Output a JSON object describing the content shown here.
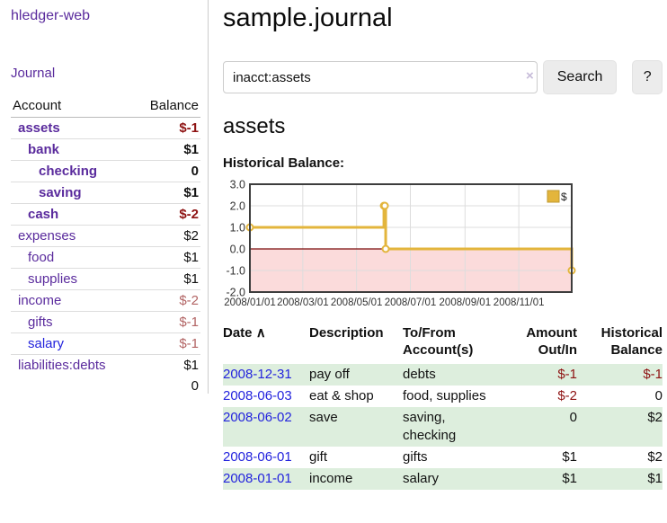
{
  "app": {
    "brand": "hledger-web"
  },
  "colors": {
    "link_purple": "#5a2b9d",
    "link_blue": "#2323dd",
    "negative_strong": "#8e1212",
    "negative_muted": "#b26464",
    "row_stripe_green": "#ddeedd",
    "chart_gold": "#e3b53c",
    "chart_negative_fill": "#fbdbdb",
    "chart_zero_line": "#7a0a0a"
  },
  "sidebar": {
    "journal_link": "Journal",
    "accounts": {
      "header": {
        "account": "Account",
        "balance": "Balance"
      },
      "rows": [
        {
          "name": "assets",
          "balance": "$-1",
          "depth": 1,
          "bold": true,
          "name_color": "purple",
          "balance_color": "neg-strong"
        },
        {
          "name": "bank",
          "balance": "$1",
          "depth": 2,
          "bold": true,
          "name_color": "purple",
          "balance_color": "normal"
        },
        {
          "name": "checking",
          "balance": "0",
          "depth": 3,
          "bold": true,
          "name_color": "purple",
          "balance_color": "normal"
        },
        {
          "name": "saving",
          "balance": "$1",
          "depth": 3,
          "bold": true,
          "name_color": "purple",
          "balance_color": "normal"
        },
        {
          "name": "cash",
          "balance": "$-2",
          "depth": 2,
          "bold": true,
          "name_color": "purple",
          "balance_color": "neg-strong"
        },
        {
          "name": "expenses",
          "balance": "$2",
          "depth": 1,
          "bold": false,
          "name_color": "purple",
          "balance_color": "normal"
        },
        {
          "name": "food",
          "balance": "$1",
          "depth": 2,
          "bold": false,
          "name_color": "purple",
          "balance_color": "normal"
        },
        {
          "name": "supplies",
          "balance": "$1",
          "depth": 2,
          "bold": false,
          "name_color": "purple",
          "balance_color": "normal"
        },
        {
          "name": "income",
          "balance": "$-2",
          "depth": 1,
          "bold": false,
          "name_color": "purple",
          "balance_color": "neg-muted"
        },
        {
          "name": "gifts",
          "balance": "$-1",
          "depth": 2,
          "bold": false,
          "name_color": "purple",
          "balance_color": "neg-muted"
        },
        {
          "name": "salary",
          "balance": "$-1",
          "depth": 2,
          "bold": false,
          "name_color": "blue",
          "balance_color": "neg-muted"
        },
        {
          "name": "liabilities:debts",
          "balance": "$1",
          "depth": 1,
          "bold": false,
          "name_color": "purple",
          "balance_color": "normal"
        }
      ],
      "total": "0"
    }
  },
  "main": {
    "title": "sample.journal",
    "search": {
      "value": "inacct:assets",
      "clear_icon": "×",
      "search_button": "Search",
      "help_button": "?"
    },
    "account_heading": "assets",
    "chart_label": "Historical Balance:"
  },
  "chart_data": {
    "type": "line",
    "subtype": "step-line",
    "title": "Historical Balance:",
    "x_range": [
      "2008-01-01",
      "2008-12-31"
    ],
    "ylim": [
      -2.0,
      3.0
    ],
    "yticks": [
      3.0,
      2.0,
      1.0,
      0.0,
      -1.0,
      -2.0
    ],
    "xticks": [
      "2008/01/01",
      "2008/03/01",
      "2008/05/01",
      "2008/07/01",
      "2008/09/01",
      "2008/11/01"
    ],
    "grid": true,
    "legend": {
      "label": "$",
      "position": "top-right"
    },
    "series": [
      {
        "name": "$",
        "color": "#e3b53c",
        "points": [
          {
            "date": "2008-01-01",
            "value": 1
          },
          {
            "date": "2008-06-01",
            "value": 2
          },
          {
            "date": "2008-06-02",
            "value": 2
          },
          {
            "date": "2008-06-03",
            "value": 0
          },
          {
            "date": "2008-12-31",
            "value": -1
          }
        ]
      }
    ],
    "negative_region_fill": "#fbdbdb",
    "zero_line_color": "#7a0a0a"
  },
  "register": {
    "sort_icon": "∧",
    "headers": {
      "date": "Date",
      "description": "Description",
      "accounts": "To/From\nAccount(s)",
      "amount": "Amount\nOut/In",
      "balance": "Historical\nBalance"
    },
    "rows": [
      {
        "date": "2008-12-31",
        "description": "pay off",
        "accounts": "debts",
        "amount": "$-1",
        "amount_neg": true,
        "balance": "$-1",
        "balance_neg": true
      },
      {
        "date": "2008-06-03",
        "description": "eat & shop",
        "accounts": "food, supplies",
        "amount": "$-2",
        "amount_neg": true,
        "balance": "0",
        "balance_neg": false
      },
      {
        "date": "2008-06-02",
        "description": "save",
        "accounts": "saving,\nchecking",
        "amount": "0",
        "amount_neg": false,
        "balance": "$2",
        "balance_neg": false
      },
      {
        "date": "2008-06-01",
        "description": "gift",
        "accounts": "gifts",
        "amount": "$1",
        "amount_neg": false,
        "balance": "$2",
        "balance_neg": false
      },
      {
        "date": "2008-01-01",
        "description": "income",
        "accounts": "salary",
        "amount": "$1",
        "amount_neg": false,
        "balance": "$1",
        "balance_neg": false
      }
    ]
  }
}
